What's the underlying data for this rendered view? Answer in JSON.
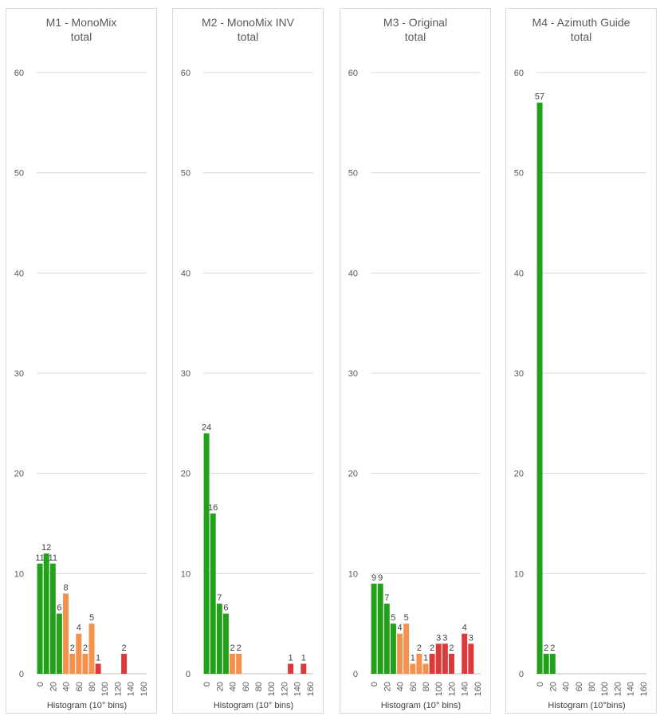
{
  "chart_data": [
    {
      "type": "bar",
      "title": "M1 - MonoMix",
      "subtitle": "total",
      "xlabel": "Histogram (10° bins)",
      "ylabel": "",
      "ylim": [
        0,
        60
      ],
      "yticks": [
        "0",
        "10",
        "20",
        "30",
        "40",
        "50",
        "60"
      ],
      "xticks": [
        "0",
        "20",
        "40",
        "60",
        "80",
        "100",
        "120",
        "140",
        "160"
      ],
      "x": [
        0,
        10,
        20,
        30,
        40,
        50,
        60,
        70,
        80,
        90,
        100,
        110,
        120,
        130,
        140,
        150,
        160
      ],
      "values": [
        11,
        12,
        11,
        6,
        8,
        2,
        4,
        2,
        5,
        1,
        null,
        null,
        null,
        2,
        null,
        null,
        null
      ],
      "labels": [
        "11",
        "12",
        "11",
        "6",
        "8",
        "2",
        "4",
        "2",
        "5",
        "1",
        "",
        "",
        "",
        "2",
        "",
        "",
        ""
      ],
      "colors": [
        "#23a11a",
        "#23a11a",
        "#23a11a",
        "#23a11a",
        "#f4914d",
        "#f4914d",
        "#f4914d",
        "#f4914d",
        "#f4914d",
        "#db3a3a",
        "",
        "",
        "",
        "#db3a3a",
        "",
        "",
        ""
      ],
      "grid": true
    },
    {
      "type": "bar",
      "title": "M2 - MonoMix INV",
      "subtitle": "total",
      "xlabel": "Histogram (10° bins)",
      "ylabel": "",
      "ylim": [
        0,
        60
      ],
      "yticks": [
        "0",
        "10",
        "20",
        "30",
        "40",
        "50",
        "60"
      ],
      "xticks": [
        "0",
        "20",
        "40",
        "60",
        "80",
        "100",
        "120",
        "140",
        "160"
      ],
      "x": [
        0,
        10,
        20,
        30,
        40,
        50,
        60,
        70,
        80,
        90,
        100,
        110,
        120,
        130,
        140,
        150,
        160
      ],
      "values": [
        24,
        16,
        7,
        6,
        2,
        2,
        null,
        null,
        null,
        null,
        null,
        null,
        null,
        1,
        null,
        1,
        null
      ],
      "labels": [
        "24",
        "16",
        "7",
        "6",
        "2",
        "2",
        "",
        "",
        "",
        "",
        "",
        "",
        "",
        "1",
        "",
        "1",
        ""
      ],
      "colors": [
        "#23a11a",
        "#23a11a",
        "#23a11a",
        "#23a11a",
        "#f4914d",
        "#f4914d",
        "",
        "",
        "",
        "",
        "",
        "",
        "",
        "#db3a3a",
        "",
        "#db3a3a",
        ""
      ],
      "grid": true
    },
    {
      "type": "bar",
      "title": "M3 - Original",
      "subtitle": "total",
      "xlabel": "Histogram (10° bins)",
      "ylabel": "",
      "ylim": [
        0,
        60
      ],
      "yticks": [
        "0",
        "10",
        "20",
        "30",
        "40",
        "50",
        "60"
      ],
      "xticks": [
        "0",
        "20",
        "40",
        "60",
        "80",
        "100",
        "120",
        "140",
        "160"
      ],
      "x": [
        0,
        10,
        20,
        30,
        40,
        50,
        60,
        70,
        80,
        90,
        100,
        110,
        120,
        130,
        140,
        150,
        160
      ],
      "values": [
        9,
        9,
        7,
        5,
        4,
        5,
        1,
        2,
        1,
        2,
        3,
        3,
        2,
        null,
        4,
        3,
        null
      ],
      "labels": [
        "9",
        "9",
        "7",
        "5",
        "4",
        "5",
        "1",
        "2",
        "1",
        "2",
        "3",
        "3",
        "2",
        "",
        "4",
        "3",
        ""
      ],
      "colors": [
        "#23a11a",
        "#23a11a",
        "#23a11a",
        "#23a11a",
        "#f4914d",
        "#f4914d",
        "#f4914d",
        "#f4914d",
        "#f4914d",
        "#db3a3a",
        "#db3a3a",
        "#db3a3a",
        "#db3a3a",
        "",
        "#db3a3a",
        "#db3a3a",
        ""
      ],
      "grid": true
    },
    {
      "type": "bar",
      "title": "M4 - Azimuth Guide",
      "subtitle": "total",
      "xlabel": "Histogram (10°bins)",
      "ylabel": "",
      "ylim": [
        0,
        60
      ],
      "yticks": [
        "0",
        "10",
        "20",
        "30",
        "40",
        "50",
        "60"
      ],
      "xticks": [
        "0",
        "20",
        "40",
        "60",
        "80",
        "100",
        "120",
        "140",
        "160"
      ],
      "x": [
        0,
        10,
        20,
        30,
        40,
        50,
        60,
        70,
        80,
        90,
        100,
        110,
        120,
        130,
        140,
        150,
        160
      ],
      "values": [
        57,
        2,
        2,
        null,
        null,
        null,
        null,
        null,
        null,
        null,
        null,
        null,
        null,
        null,
        null,
        null,
        null
      ],
      "labels": [
        "57",
        "2",
        "2",
        "",
        "",
        "",
        "",
        "",
        "",
        "",
        "",
        "",
        "",
        "",
        "",
        "",
        ""
      ],
      "colors": [
        "#23a11a",
        "#23a11a",
        "#23a11a",
        "",
        "",
        "",
        "",
        "",
        "",
        "",
        "",
        "",
        "",
        "",
        "",
        "",
        ""
      ],
      "grid": true
    }
  ]
}
